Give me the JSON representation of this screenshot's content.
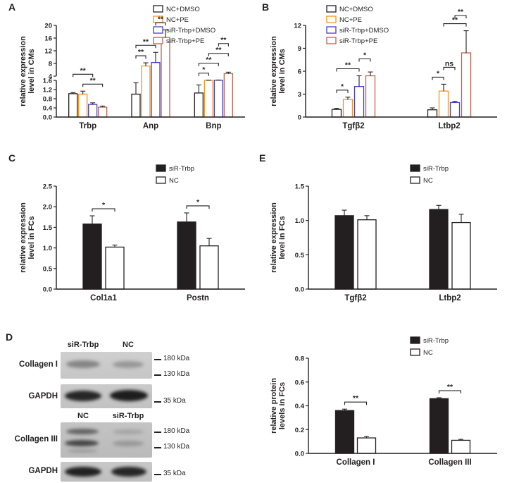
{
  "panels": {
    "a": "A",
    "b": "B",
    "c": "C",
    "d": "D",
    "e": "E"
  },
  "colors": {
    "black": "#231f20",
    "orange": "#f6921e",
    "blue": "#4340c8",
    "red": "#c0604c",
    "white": "#ffffff"
  },
  "chart_data": [
    {
      "id": "A",
      "type": "bar",
      "ylabel": "relative expression\nlevel in CMs",
      "categories": [
        "Trbp",
        "Anp",
        "Bnp"
      ],
      "axis_break": {
        "lower_range": [
          0,
          1.6
        ],
        "upper_range": [
          4,
          20
        ],
        "lower_ticks": [
          "0.0",
          "0.4",
          "0.8",
          "1.2",
          "1.6"
        ],
        "upper_ticks": [
          "4",
          "8",
          "12",
          "16",
          "20"
        ]
      },
      "series": [
        {
          "name": "NC+DMSO",
          "fill": "#ffffff",
          "edge": "#231f20",
          "values": [
            1.02,
            1.0,
            1.05
          ],
          "errors": [
            0.05,
            0.5,
            0.35
          ]
        },
        {
          "name": "NC+PE",
          "fill": "#ffffff",
          "edge": "#f6921e",
          "values": [
            1.0,
            7.2,
            1.62
          ],
          "errors": [
            0.13,
            1.0,
            0.08
          ]
        },
        {
          "name": "siR-Trbp+DMSO",
          "fill": "#ffffff",
          "edge": "#4340c8",
          "values": [
            0.55,
            8.3,
            1.7
          ],
          "errors": [
            0.07,
            3.2,
            0.1
          ]
        },
        {
          "name": "siR-Trbp+PE",
          "fill": "#ffffff",
          "edge": "#c0604c",
          "values": [
            0.43,
            16.2,
            4.8
          ],
          "errors": [
            0.05,
            2.4,
            0.45
          ]
        }
      ],
      "sig": [
        {
          "cat": 0,
          "a": 1,
          "b": 3,
          "label": "**"
        },
        {
          "cat": 0,
          "a": 0,
          "b": 2,
          "label": "**"
        },
        {
          "cat": 1,
          "a": 0,
          "b": 1,
          "label": "**"
        },
        {
          "cat": 1,
          "a": 0,
          "b": 2,
          "label": "**"
        },
        {
          "cat": 1,
          "a": 2,
          "b": 3,
          "label": "**"
        },
        {
          "cat": 2,
          "a": 0,
          "b": 1,
          "label": "*"
        },
        {
          "cat": 2,
          "a": 0,
          "b": 2,
          "label": "**"
        },
        {
          "cat": 2,
          "a": 1,
          "b": 3,
          "label": "**"
        },
        {
          "cat": 2,
          "a": 2,
          "b": 3,
          "label": "**"
        }
      ]
    },
    {
      "id": "B",
      "type": "bar",
      "ylabel": "relative expression\nlevel in CMs",
      "categories": [
        "Tgfβ2",
        "Ltbp2"
      ],
      "ylim": [
        0,
        12
      ],
      "ticks": [
        "0",
        "3",
        "6",
        "9",
        "12"
      ],
      "series": [
        {
          "name": "NC+DMSO",
          "fill": "#ffffff",
          "edge": "#231f20",
          "values": [
            1.0,
            0.95
          ],
          "errors": [
            0.15,
            0.25
          ]
        },
        {
          "name": "NC+PE",
          "fill": "#ffffff",
          "edge": "#f6921e",
          "values": [
            2.3,
            3.4
          ],
          "errors": [
            0.3,
            0.9
          ]
        },
        {
          "name": "siR-Trbp+DMSO",
          "fill": "#ffffff",
          "edge": "#4340c8",
          "values": [
            4.0,
            1.9
          ],
          "errors": [
            1.4,
            0.15
          ]
        },
        {
          "name": "siR-Trbp+PE",
          "fill": "#ffffff",
          "edge": "#c0604c",
          "values": [
            5.4,
            8.4
          ],
          "errors": [
            0.5,
            2.9
          ]
        }
      ],
      "sig": [
        {
          "cat": 0,
          "a": 0,
          "b": 1,
          "label": "*"
        },
        {
          "cat": 0,
          "a": 0,
          "b": 2,
          "label": "**"
        },
        {
          "cat": 0,
          "a": 2,
          "b": 3,
          "label": "*"
        },
        {
          "cat": 1,
          "a": 0,
          "b": 1,
          "label": "*"
        },
        {
          "cat": 1,
          "a": 1,
          "b": 2,
          "label": "ns"
        },
        {
          "cat": 1,
          "a": 1,
          "b": 3,
          "label": "**"
        },
        {
          "cat": 1,
          "a": 2,
          "b": 3,
          "label": "**"
        }
      ]
    },
    {
      "id": "C",
      "type": "bar",
      "ylabel": "relative expression\nlevel in FCs",
      "categories": [
        "Col1a1",
        "Postn"
      ],
      "ylim": [
        0,
        2.5
      ],
      "ticks": [
        "0.0",
        "0.5",
        "1.0",
        "1.5",
        "2.0",
        "2.5"
      ],
      "series": [
        {
          "name": "siR-Trbp",
          "fill": "#231f20",
          "edge": "#231f20",
          "values": [
            1.58,
            1.63
          ],
          "errors": [
            0.2,
            0.22
          ]
        },
        {
          "name": "NC",
          "fill": "#ffffff",
          "edge": "#231f20",
          "values": [
            1.02,
            1.05
          ],
          "errors": [
            0.05,
            0.18
          ]
        }
      ],
      "sig": [
        {
          "cat": 0,
          "a": 0,
          "b": 1,
          "label": "*"
        },
        {
          "cat": 1,
          "a": 0,
          "b": 1,
          "label": "*"
        }
      ]
    },
    {
      "id": "E",
      "type": "bar",
      "ylabel": "relative expression\nlevel in FCs",
      "categories": [
        "Tgfβ2",
        "Ltbp2"
      ],
      "ylim": [
        0,
        1.5
      ],
      "ticks": [
        "0.0",
        "0.5",
        "1.0",
        "1.5"
      ],
      "series": [
        {
          "name": "siR-Trbp",
          "fill": "#231f20",
          "edge": "#231f20",
          "values": [
            1.07,
            1.16
          ],
          "errors": [
            0.08,
            0.06
          ]
        },
        {
          "name": "NC",
          "fill": "#ffffff",
          "edge": "#231f20",
          "values": [
            1.01,
            0.97
          ],
          "errors": [
            0.06,
            0.12
          ]
        }
      ],
      "sig": []
    },
    {
      "id": "D",
      "type": "bar",
      "ylabel": "relative protein\nlevels in FCs",
      "categories": [
        "Collagen I",
        "Collagen III"
      ],
      "ylim": [
        0,
        0.8
      ],
      "ticks": [
        "0.0",
        "0.2",
        "0.4",
        "0.6",
        "0.8"
      ],
      "series": [
        {
          "name": "siR-Trbp",
          "fill": "#231f20",
          "edge": "#231f20",
          "values": [
            0.36,
            0.46
          ],
          "errors": [
            0.012,
            0.008
          ]
        },
        {
          "name": "NC",
          "fill": "#ffffff",
          "edge": "#231f20",
          "values": [
            0.13,
            0.11
          ],
          "errors": [
            0.012,
            0.008
          ]
        }
      ],
      "sig": [
        {
          "cat": 0,
          "a": 0,
          "b": 1,
          "label": "**"
        },
        {
          "cat": 1,
          "a": 0,
          "b": 1,
          "label": "**"
        }
      ]
    }
  ],
  "panel_d": {
    "set1": {
      "lane1": "siR-Trbp",
      "lane2": "NC",
      "row1": "Collagen I",
      "row2": "GAPDH",
      "marker180": "180 kDa",
      "marker130": "130 kDa",
      "marker35": "35 kDa"
    },
    "set2": {
      "lane1": "NC",
      "lane2": "siR-Trbp",
      "row1": "Collagen III",
      "row2": "GAPDH",
      "marker180": "180 kDa",
      "marker130": "130 kDa",
      "marker35": "35 kDa"
    }
  }
}
